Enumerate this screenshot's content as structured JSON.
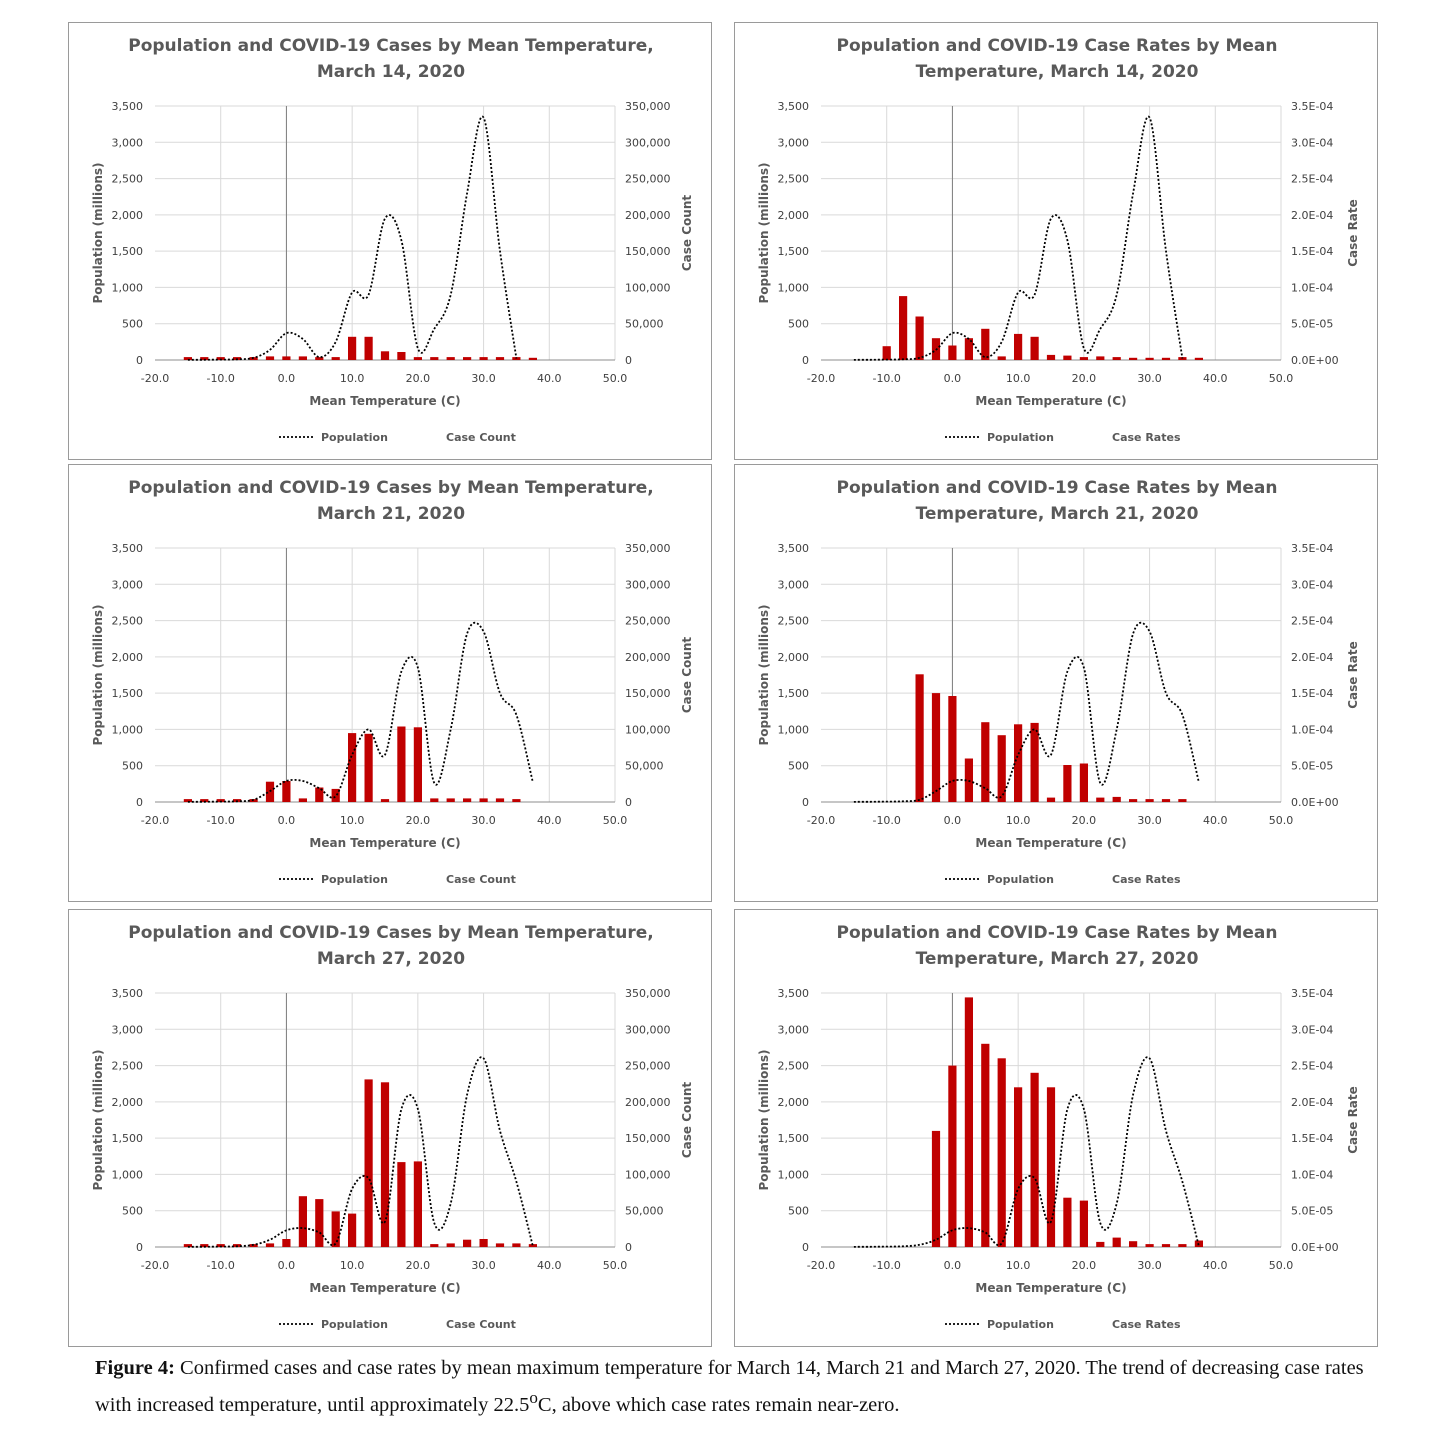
{
  "caption": {
    "label": "Figure 4:",
    "text_before_sup": " Confirmed cases and case rates by mean maximum temperature for March 14, March 21 and March 27, 2020. The trend of decreasing case rates with increased temperature, until approximately 22.5",
    "sup": "o",
    "text_after_sup": "C, above which case rates remain near-zero."
  },
  "colors": {
    "bar": "#c00000",
    "line": "#000000",
    "grid": "#d9d9d9",
    "text": "#595959"
  },
  "chart_data": [
    {
      "type": "bar",
      "title_line1": "Population and COVID-19 Cases by Mean Temperature,",
      "title_line2": "March 14, 2020",
      "xlabel": "Mean Temperature (C)",
      "ylabel": "Population (millions)",
      "y2label": "Case Count",
      "xlim": [
        -20,
        50
      ],
      "ylim": [
        0,
        3500
      ],
      "y2lim": [
        0,
        350000
      ],
      "x_ticks": [
        "-20.0",
        "-10.0",
        "0.0",
        "10.0",
        "20.0",
        "30.0",
        "40.0",
        "50.0"
      ],
      "y_ticks": [
        "0",
        "500",
        "1,000",
        "1,500",
        "2,000",
        "2,500",
        "3,000",
        "3,500"
      ],
      "y2_ticks": [
        "0",
        "50,000",
        "100,000",
        "150,000",
        "200,000",
        "250,000",
        "300,000",
        "350,000"
      ],
      "legend": {
        "line_name": "Population",
        "bar_name": "Case Count",
        "position": "bottom"
      },
      "grid": true,
      "series": [
        {
          "name": "Population",
          "kind": "line",
          "style": "dotted",
          "x": [
            -15,
            -12.5,
            -10,
            -7.5,
            -5,
            -2.5,
            0,
            2.5,
            5,
            7.5,
            10,
            12.5,
            15,
            17.5,
            20,
            22.5,
            25,
            27.5,
            30,
            32.5,
            35
          ],
          "values": [
            2,
            3,
            5,
            10,
            30,
            140,
            370,
            290,
            40,
            250,
            930,
            900,
            1950,
            1650,
            160,
            430,
            900,
            2300,
            3340,
            1500,
            20
          ]
        },
        {
          "name": "Case Count",
          "kind": "bar",
          "axis": "right",
          "x": [
            -15,
            -12.5,
            -10,
            -7.5,
            -5,
            -2.5,
            0,
            2.5,
            5,
            7.5,
            10,
            12.5,
            15,
            17.5,
            20,
            22.5,
            25,
            27.5,
            30,
            32.5,
            35,
            37.5
          ],
          "values": [
            4000,
            4000,
            4000,
            4000,
            4000,
            5000,
            5000,
            5000,
            4000,
            4000,
            32000,
            32000,
            12000,
            11000,
            4000,
            4000,
            4000,
            4000,
            4000,
            4000,
            4000,
            3000
          ]
        }
      ]
    },
    {
      "type": "bar",
      "title_line1": "Population and COVID-19 Case Rates by Mean",
      "title_line2": "Temperature, March 14, 2020",
      "xlabel": "Mean Temperature (C)",
      "ylabel": "Population (millions)",
      "y2label": "Case Rate",
      "xlim": [
        -20,
        50
      ],
      "ylim": [
        0,
        3500
      ],
      "y2lim": [
        0,
        0.00035
      ],
      "x_ticks": [
        "-20.0",
        "-10.0",
        "0.0",
        "10.0",
        "20.0",
        "30.0",
        "40.0",
        "50.0"
      ],
      "y_ticks": [
        "0",
        "500",
        "1,000",
        "1,500",
        "2,000",
        "2,500",
        "3,000",
        "3,500"
      ],
      "y2_ticks": [
        "0.0E+00",
        "5.0E-05",
        "1.0E-04",
        "1.5E-04",
        "2.0E-04",
        "2.5E-04",
        "3.0E-04",
        "3.5E-04"
      ],
      "legend": {
        "line_name": "Population",
        "bar_name": "Case Rates",
        "position": "bottom"
      },
      "grid": true,
      "series": [
        {
          "name": "Population",
          "kind": "line",
          "style": "dotted",
          "x": [
            -15,
            -12.5,
            -10,
            -7.5,
            -5,
            -2.5,
            0,
            2.5,
            5,
            7.5,
            10,
            12.5,
            15,
            17.5,
            20,
            22.5,
            25,
            27.5,
            30,
            32.5,
            35
          ],
          "values": [
            2,
            3,
            5,
            10,
            30,
            140,
            370,
            290,
            40,
            250,
            930,
            900,
            1950,
            1650,
            160,
            430,
            900,
            2300,
            3340,
            1500,
            20
          ]
        },
        {
          "name": "Case Rates",
          "kind": "bar",
          "axis": "right",
          "x": [
            -10,
            -7.5,
            -5,
            -2.5,
            0,
            2.5,
            5,
            7.5,
            10,
            12.5,
            15,
            17.5,
            20,
            22.5,
            25,
            27.5,
            30,
            32.5,
            35,
            37.5
          ],
          "values": [
            1.9e-05,
            8.8e-05,
            6e-05,
            3e-05,
            2e-05,
            3e-05,
            4.3e-05,
            5e-06,
            3.6e-05,
            3.2e-05,
            7e-06,
            6e-06,
            4e-06,
            5e-06,
            4e-06,
            3e-06,
            3e-06,
            3e-06,
            4e-06,
            3e-06
          ]
        }
      ]
    },
    {
      "type": "bar",
      "title_line1": "Population and COVID-19 Cases by Mean Temperature,",
      "title_line2": "March 21, 2020",
      "xlabel": "Mean Temperature (C)",
      "ylabel": "Population (millions)",
      "y2label": "Case Count",
      "xlim": [
        -20,
        50
      ],
      "ylim": [
        0,
        3500
      ],
      "y2lim": [
        0,
        350000
      ],
      "x_ticks": [
        "-20.0",
        "-10.0",
        "0.0",
        "10.0",
        "20.0",
        "30.0",
        "40.0",
        "50.0"
      ],
      "y_ticks": [
        "0",
        "500",
        "1,000",
        "1,500",
        "2,000",
        "2,500",
        "3,000",
        "3,500"
      ],
      "y2_ticks": [
        "0",
        "50,000",
        "100,000",
        "150,000",
        "200,000",
        "250,000",
        "300,000",
        "350,000"
      ],
      "legend": {
        "line_name": "Population",
        "bar_name": "Case Count",
        "position": "bottom"
      },
      "grid": true,
      "series": [
        {
          "name": "Population",
          "kind": "line",
          "style": "dotted",
          "x": [
            -15,
            -12.5,
            -10,
            -7.5,
            -5,
            -2.5,
            0,
            2.5,
            5,
            7.5,
            10,
            12.5,
            15,
            17.5,
            20,
            22.5,
            25,
            27.5,
            30,
            32.5,
            35,
            37.5
          ],
          "values": [
            2,
            3,
            5,
            10,
            30,
            150,
            290,
            290,
            190,
            80,
            650,
            1000,
            650,
            1800,
            1850,
            260,
            1000,
            2320,
            2350,
            1500,
            1200,
            270
          ]
        },
        {
          "name": "Case Count",
          "kind": "bar",
          "axis": "right",
          "x": [
            -15,
            -12.5,
            -10,
            -7.5,
            -5,
            -2.5,
            0,
            2.5,
            5,
            7.5,
            10,
            12.5,
            15,
            17.5,
            20,
            22.5,
            25,
            27.5,
            30,
            32.5,
            35
          ],
          "values": [
            4000,
            4000,
            4000,
            4000,
            4000,
            28000,
            29000,
            5000,
            20000,
            18000,
            95000,
            94000,
            4000,
            104000,
            103000,
            5000,
            5000,
            5000,
            5000,
            5000,
            4000
          ]
        }
      ]
    },
    {
      "type": "bar",
      "title_line1": "Population and COVID-19 Case Rates by Mean",
      "title_line2": "Temperature, March 21, 2020",
      "xlabel": "Mean Temperature (C)",
      "ylabel": "Population (millions)",
      "y2label": "Case Rate",
      "xlim": [
        -20,
        50
      ],
      "ylim": [
        0,
        3500
      ],
      "y2lim": [
        0,
        0.00035
      ],
      "x_ticks": [
        "-20.0",
        "-10.0",
        "0.0",
        "10.0",
        "20.0",
        "30.0",
        "40.0",
        "50.0"
      ],
      "y_ticks": [
        "0",
        "500",
        "1,000",
        "1,500",
        "2,000",
        "2,500",
        "3,000",
        "3,500"
      ],
      "y2_ticks": [
        "0.0E+00",
        "5.0E-05",
        "1.0E-04",
        "1.5E-04",
        "2.0E-04",
        "2.5E-04",
        "3.0E-04",
        "3.5E-04"
      ],
      "legend": {
        "line_name": "Population",
        "bar_name": "Case Rates",
        "position": "bottom"
      },
      "grid": true,
      "series": [
        {
          "name": "Population",
          "kind": "line",
          "style": "dotted",
          "x": [
            -15,
            -12.5,
            -10,
            -7.5,
            -5,
            -2.5,
            0,
            2.5,
            5,
            7.5,
            10,
            12.5,
            15,
            17.5,
            20,
            22.5,
            25,
            27.5,
            30,
            32.5,
            35,
            37.5
          ],
          "values": [
            2,
            3,
            5,
            10,
            30,
            150,
            290,
            290,
            190,
            80,
            650,
            1000,
            650,
            1800,
            1850,
            260,
            1000,
            2320,
            2350,
            1500,
            1200,
            270
          ]
        },
        {
          "name": "Case Rates",
          "kind": "bar",
          "axis": "right",
          "x": [
            -5,
            -2.5,
            0,
            2.5,
            5,
            7.5,
            10,
            12.5,
            15,
            17.5,
            20,
            22.5,
            25,
            27.5,
            30,
            32.5,
            35
          ],
          "values": [
            0.000176,
            0.00015,
            0.000146,
            6e-05,
            0.00011,
            9.2e-05,
            0.000107,
            0.000109,
            6e-06,
            5.1e-05,
            5.3e-05,
            6e-06,
            7e-06,
            4e-06,
            4e-06,
            4e-06,
            4e-06
          ]
        }
      ]
    },
    {
      "type": "bar",
      "title_line1": "Population and COVID-19 Cases by Mean Temperature,",
      "title_line2": "March 27, 2020",
      "xlabel": "Mean Temperature (C)",
      "ylabel": "Population (millions)",
      "y2label": "Case Count",
      "xlim": [
        -20,
        50
      ],
      "ylim": [
        0,
        3500
      ],
      "y2lim": [
        0,
        350000
      ],
      "x_ticks": [
        "-20.0",
        "-10.0",
        "0.0",
        "10.0",
        "20.0",
        "30.0",
        "40.0",
        "50.0"
      ],
      "y_ticks": [
        "0",
        "500",
        "1,000",
        "1,500",
        "2,000",
        "2,500",
        "3,000",
        "3,500"
      ],
      "y2_ticks": [
        "0",
        "50,000",
        "100,000",
        "150,000",
        "200,000",
        "250,000",
        "300,000",
        "350,000"
      ],
      "legend": {
        "line_name": "Population",
        "bar_name": "Case Count",
        "position": "bottom"
      },
      "grid": true,
      "series": [
        {
          "name": "Population",
          "kind": "line",
          "style": "dotted",
          "x": [
            -15,
            -12.5,
            -10,
            -7.5,
            -5,
            -2.5,
            0,
            2.5,
            5,
            7.5,
            10,
            12.5,
            15,
            17.5,
            20,
            22.5,
            25,
            27.5,
            30,
            32.5,
            35,
            37.5
          ],
          "values": [
            2,
            3,
            5,
            10,
            30,
            100,
            230,
            260,
            200,
            50,
            800,
            950,
            350,
            1900,
            1900,
            330,
            600,
            2100,
            2600,
            1600,
            900,
            10
          ]
        },
        {
          "name": "Case Count",
          "kind": "bar",
          "axis": "right",
          "x": [
            -15,
            -12.5,
            -10,
            -7.5,
            -5,
            -2.5,
            0,
            2.5,
            5,
            7.5,
            10,
            12.5,
            15,
            17.5,
            20,
            22.5,
            25,
            27.5,
            30,
            32.5,
            35,
            37.5
          ],
          "values": [
            4000,
            4000,
            4000,
            4000,
            4000,
            5000,
            11000,
            70000,
            66000,
            49000,
            46000,
            231000,
            227000,
            117000,
            118000,
            4000,
            5000,
            10000,
            11000,
            5000,
            5000,
            4000
          ]
        }
      ]
    },
    {
      "type": "bar",
      "title_line1": "Population and COVID-19 Case Rates by Mean",
      "title_line2": "Temperature, March 27, 2020",
      "xlabel": "Mean Temperature (C)",
      "ylabel": "Population (millions)",
      "y2label": "Case Rate",
      "xlim": [
        -20,
        50
      ],
      "ylim": [
        0,
        3500
      ],
      "y2lim": [
        0,
        0.00035
      ],
      "x_ticks": [
        "-20.0",
        "-10.0",
        "0.0",
        "10.0",
        "20.0",
        "30.0",
        "40.0",
        "50.0"
      ],
      "y_ticks": [
        "0",
        "500",
        "1,000",
        "1,500",
        "2,000",
        "2,500",
        "3,000",
        "3,500"
      ],
      "y2_ticks": [
        "0.0E+00",
        "5.0E-05",
        "1.0E-04",
        "1.5E-04",
        "2.0E-04",
        "2.5E-04",
        "3.0E-04",
        "3.5E-04"
      ],
      "legend": {
        "line_name": "Population",
        "bar_name": "Case Rates",
        "position": "bottom"
      },
      "grid": true,
      "series": [
        {
          "name": "Population",
          "kind": "line",
          "style": "dotted",
          "x": [
            -15,
            -12.5,
            -10,
            -7.5,
            -5,
            -2.5,
            0,
            2.5,
            5,
            7.5,
            10,
            12.5,
            15,
            17.5,
            20,
            22.5,
            25,
            27.5,
            30,
            32.5,
            35,
            37.5
          ],
          "values": [
            2,
            3,
            5,
            10,
            30,
            100,
            230,
            260,
            200,
            50,
            800,
            950,
            350,
            1900,
            1900,
            330,
            600,
            2100,
            2600,
            1600,
            900,
            10
          ]
        },
        {
          "name": "Case Rates",
          "kind": "bar",
          "axis": "right",
          "x": [
            -2.5,
            0,
            2.5,
            5,
            7.5,
            10,
            12.5,
            15,
            17.5,
            20,
            22.5,
            25,
            27.5,
            30,
            32.5,
            35,
            37.5
          ],
          "values": [
            0.00016,
            0.00025,
            0.000344,
            0.00028,
            0.00026,
            0.00022,
            0.00024,
            0.00022,
            6.8e-05,
            6.4e-05,
            7e-06,
            1.3e-05,
            8e-06,
            4e-06,
            4e-06,
            4e-06,
            9e-06
          ]
        }
      ]
    }
  ]
}
